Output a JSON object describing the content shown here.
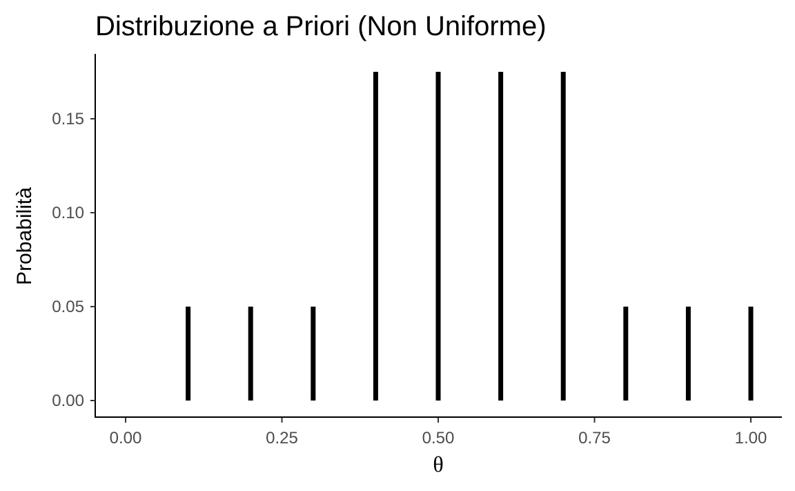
{
  "chart_data": {
    "type": "bar",
    "title": "Distribuzione a Priori (Non Uniforme)",
    "xlabel": "θ",
    "ylabel": "Probabilità",
    "x": [
      0.1,
      0.2,
      0.3,
      0.4,
      0.5,
      0.6,
      0.7,
      0.8,
      0.9,
      1.0
    ],
    "values": [
      0.05,
      0.05,
      0.05,
      0.175,
      0.175,
      0.175,
      0.175,
      0.05,
      0.05,
      0.05
    ],
    "xlim": [
      0,
      1
    ],
    "ylim": [
      0,
      0.175
    ],
    "x_ticks": [
      {
        "value": 0,
        "label": "0.00"
      },
      {
        "value": 0.25,
        "label": "0.25"
      },
      {
        "value": 0.5,
        "label": "0.50"
      },
      {
        "value": 0.75,
        "label": "0.75"
      },
      {
        "value": 1,
        "label": "1.00"
      }
    ],
    "y_ticks": [
      {
        "value": 0,
        "label": "0.00"
      },
      {
        "value": 0.05,
        "label": "0.05"
      },
      {
        "value": 0.1,
        "label": "0.10"
      },
      {
        "value": 0.15,
        "label": "0.15"
      }
    ],
    "grid": false,
    "mark_color": "#000000"
  }
}
